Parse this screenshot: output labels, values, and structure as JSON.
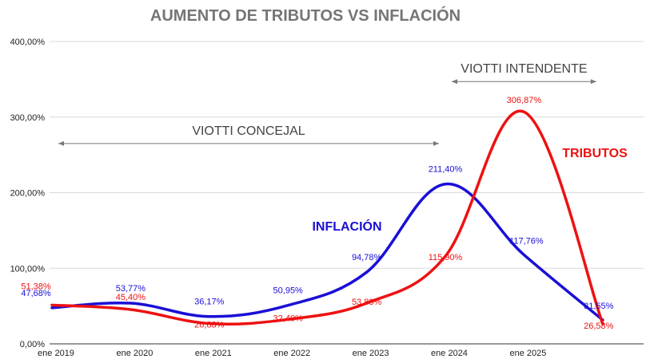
{
  "chart_data": {
    "type": "line",
    "title": "AUMENTO DE TRIBUTOS VS INFLACIÓN",
    "categories": [
      "ene 2019",
      "ene 2020",
      "ene 2021",
      "ene 2022",
      "ene 2023",
      "ene 2024",
      "ene 2025"
    ],
    "ylim": [
      0,
      400
    ],
    "yticks": [
      "0,00%",
      "100,00%",
      "200,00%",
      "300,00%",
      "400,00%"
    ],
    "ytick_values": [
      0,
      100,
      200,
      300,
      400
    ],
    "grid": true,
    "series": [
      {
        "name": "INFLACIÓN",
        "color": "#1a0fd6",
        "x": [
          "ene 2019",
          "ene 2020",
          "ene 2021",
          "ene 2022",
          "ene 2023",
          "ene 2024",
          "ene 2025",
          "ene 2026"
        ],
        "values": [
          47.68,
          53.77,
          36.17,
          50.95,
          94.78,
          211.4,
          117.76,
          31.55
        ],
        "labels": [
          "47,68%",
          "53,77%",
          "36,17%",
          "50,95%",
          "94,78%",
          "211,40%",
          "117,76%",
          "31,55%"
        ]
      },
      {
        "name": "TRIBUTOS",
        "color": "#ee1111",
        "x": [
          "ene 2019",
          "ene 2020",
          "ene 2021",
          "ene 2022",
          "ene 2023",
          "ene 2024",
          "ene 2025",
          "ene 2026"
        ],
        "values": [
          51.38,
          45.4,
          26.88,
          32.4,
          53.88,
          115.9,
          306.87,
          26.58
        ],
        "labels": [
          "51,38%",
          "45,40%",
          "26,88%",
          "32,40%",
          "53,88%",
          "115,90%",
          "306,87%",
          "26,58%"
        ]
      }
    ],
    "annotations": [
      {
        "text": "VIOTTI CONCEJAL",
        "from": "ene 2019",
        "to": "ene 2024",
        "y": 265
      },
      {
        "text": "VIOTTI INTENDENTE",
        "from": "ene 2024",
        "to": "ene 2026",
        "y": 347
      }
    ]
  }
}
